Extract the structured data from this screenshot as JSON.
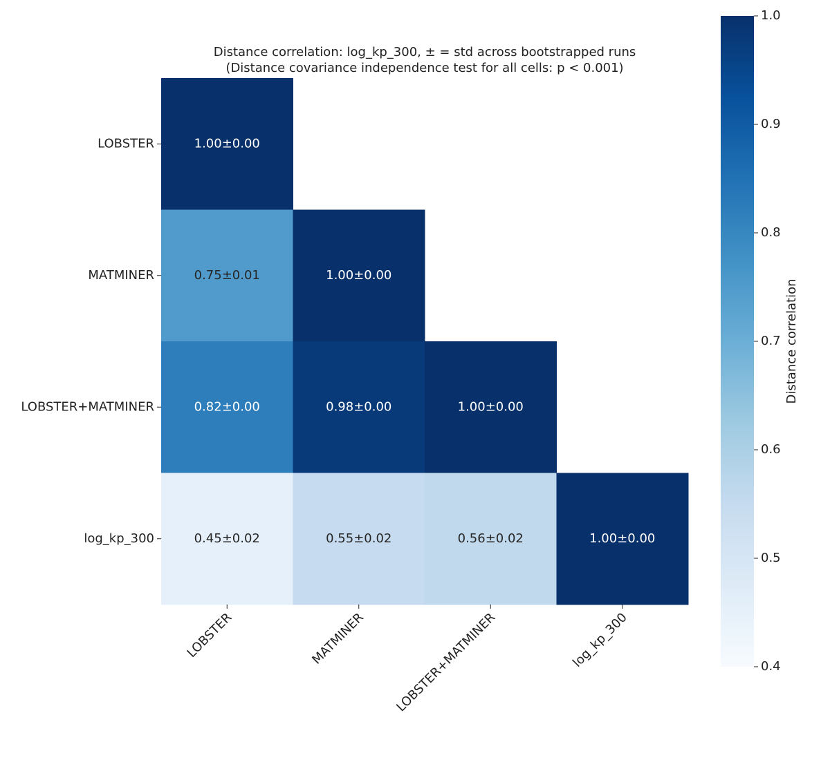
{
  "chart_data": {
    "type": "heatmap",
    "title": "Distance correlation: log_kp_300, ± = std across bootstrapped runs",
    "subtitle": "(Distance covariance independence test for all cells: p < 0.001)",
    "x": [
      "LOBSTER",
      "MATMINER",
      "LOBSTER+MATMINER",
      "log_kp_300"
    ],
    "y": [
      "LOBSTER",
      "MATMINER",
      "LOBSTER+MATMINER",
      "log_kp_300"
    ],
    "values": [
      [
        1.0,
        null,
        null,
        null
      ],
      [
        0.75,
        1.0,
        null,
        null
      ],
      [
        0.82,
        0.98,
        1.0,
        null
      ],
      [
        0.45,
        0.55,
        0.56,
        1.0
      ]
    ],
    "value_labels": [
      [
        "1.00±0.00",
        null,
        null,
        null
      ],
      [
        "0.75±0.01",
        "1.00±0.00",
        null,
        null
      ],
      [
        "0.82±0.00",
        "0.98±0.00",
        "1.00±0.00",
        null
      ],
      [
        "0.45±0.02",
        "0.55±0.02",
        "0.56±0.02",
        "1.00±0.00"
      ]
    ],
    "colors": [
      "#f7fbff",
      "#deebf7",
      "#c6dbef",
      "#9ecae1",
      "#6baed6",
      "#4292c6",
      "#2171b5",
      "#08519c",
      "#08306b"
    ],
    "zlim": [
      0.4,
      1.0
    ],
    "zticks": [
      0.4,
      0.5,
      0.6,
      0.7,
      0.8,
      0.9,
      {
        "value": 1,
        "label": "1.0"
      }
    ],
    "colorbar_label": "Distance correlation"
  }
}
